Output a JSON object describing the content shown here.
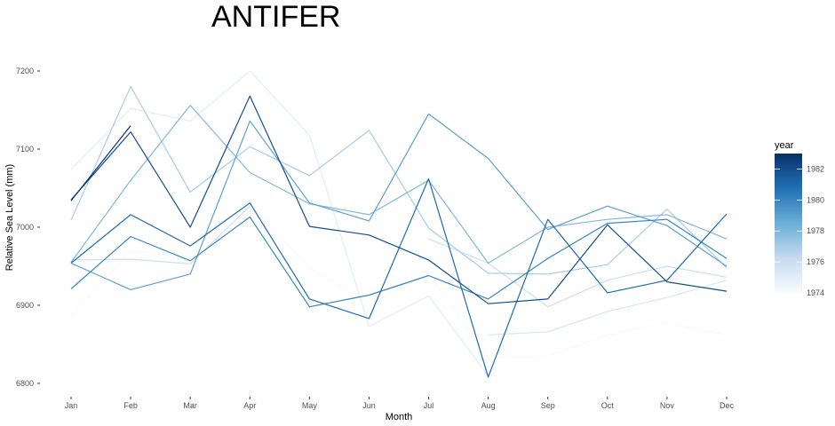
{
  "chart_data": {
    "type": "line",
    "title": "ANTIFER",
    "xlabel": "Month",
    "ylabel": "Relative Sea Level (mm)",
    "categories": [
      "Jan",
      "Feb",
      "Mar",
      "Apr",
      "May",
      "Jun",
      "Jul",
      "Aug",
      "Sep",
      "Oct",
      "Nov",
      "Dec"
    ],
    "ylim": [
      6792,
      7225
    ],
    "yticks": [
      6800,
      6900,
      7000,
      7100,
      7200
    ],
    "grid": false,
    "legend": {
      "title": "year",
      "position": "right",
      "type": "colorbar",
      "range": [
        1974,
        1983
      ],
      "ticks": [
        1974,
        1976,
        1978,
        1980,
        1982
      ],
      "color_low": "#f7fbff",
      "color_high": "#08306b"
    },
    "series": [
      {
        "year": 1974,
        "values": [
          6886,
          6970,
          6960,
          7030,
          6948,
          6902,
          6940,
          6833,
          6835,
          6862,
          6878,
          6862
        ]
      },
      {
        "year": 1975,
        "values": [
          7074,
          7152,
          7136,
          7200,
          7118,
          6873,
          6912,
          6810,
          null,
          null,
          null,
          null
        ]
      },
      {
        "year": 1975.5,
        "values": [
          null,
          null,
          null,
          null,
          null,
          null,
          null,
          6862,
          6866,
          6892,
          6910,
          6932
        ]
      },
      {
        "year": 1976,
        "values": [
          6958,
          6959,
          6953,
          7027,
          null,
          null,
          6985,
          6954,
          6898,
          6932,
          6950,
          6936
        ]
      },
      {
        "year": 1977,
        "values": [
          7009,
          7180,
          7045,
          7103,
          7066,
          7124,
          6999,
          6941,
          6940,
          6952,
          7023,
          6948
        ]
      },
      {
        "year": 1978,
        "values": [
          6955,
          7060,
          7156,
          7070,
          7030,
          7016,
          7060,
          6954,
          7000,
          7010,
          7016,
          6985
        ]
      },
      {
        "year": 1979,
        "values": [
          6954,
          6920,
          6940,
          7136,
          7031,
          7008,
          7145,
          7088,
          6997,
          7027,
          7002,
          6950
        ]
      },
      {
        "year": 1980,
        "values": [
          6921,
          6988,
          6957,
          7013,
          6898,
          6913,
          6938,
          6908,
          6960,
          7005,
          7010,
          6960
        ]
      },
      {
        "year": 1981,
        "values": [
          6954,
          7016,
          6976,
          7031,
          6908,
          6883,
          7062,
          6808,
          7010,
          6916,
          6932,
          7017
        ]
      },
      {
        "year": 1982,
        "values": [
          7035,
          7122,
          7000,
          7168,
          7001,
          6990,
          6958,
          6902,
          6908,
          7003,
          6930,
          6918
        ]
      },
      {
        "year": 1983,
        "values": [
          7034,
          7130,
          null,
          null,
          null,
          null,
          null,
          null,
          null,
          null,
          null,
          null
        ]
      }
    ]
  }
}
